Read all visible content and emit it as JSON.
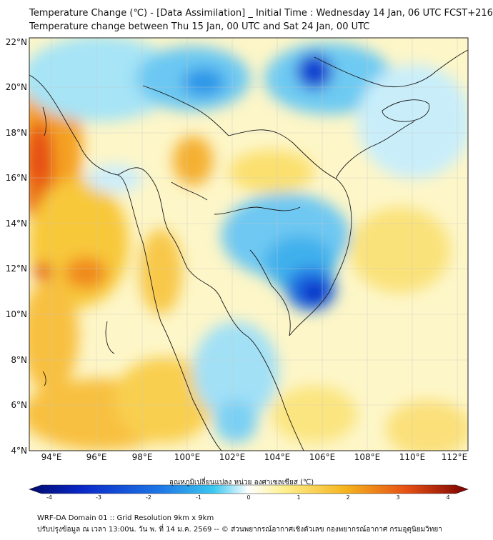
{
  "header": {
    "title_line1": "Temperature Change (℃) - [Data Assimilation] _ Initial Time : Wednesday 14 Jan, 06 UTC FCST+216",
    "title_line2": "Temperature change between Thu 15 Jan, 00 UTC and Sat 24 Jan, 00 UTC"
  },
  "map": {
    "lon_ticks": [
      "94°E",
      "96°E",
      "98°E",
      "100°E",
      "102°E",
      "104°E",
      "106°E",
      "108°E",
      "110°E",
      "112°E"
    ],
    "lat_ticks": [
      "22°N",
      "20°N",
      "18°N",
      "16°N",
      "14°N",
      "12°N",
      "10°N",
      "8°N",
      "6°N",
      "4°N"
    ],
    "lon_values": [
      94,
      96,
      98,
      100,
      102,
      104,
      106,
      108,
      110,
      112
    ],
    "lat_values": [
      22,
      20,
      18,
      16,
      14,
      12,
      10,
      8,
      6,
      4
    ],
    "lon_range": [
      93,
      112.5
    ],
    "lat_range": [
      4,
      22.2
    ]
  },
  "colorbar": {
    "label": "อุณหภูมิเปลี่ยนแปลง หน่วย องศาเซลเซียส (℃)",
    "ticks": [
      "-4",
      "-3",
      "-2",
      "-1",
      "0",
      "1",
      "2",
      "3",
      "4"
    ],
    "tick_values": [
      -4,
      -3,
      -2,
      -1,
      0,
      1,
      2,
      3,
      4
    ],
    "colors": [
      "#000a6e",
      "#0a28c8",
      "#1e78e6",
      "#3cc8f0",
      "#ffffff",
      "#fff090",
      "#f5b41e",
      "#e65014",
      "#7a0000"
    ]
  },
  "footer": {
    "line1": "WRF-DA Domain 01 :: Grid Resolution 9km x 9km",
    "line2": "ปรับปรุงข้อมูล ณ เวลา 13:00น. วัน พ. ที่ 14 ม.ค. 2569 -- © ส่วนพยากรณ์อากาศเชิงตัวเลข กองพยากรณ์อากาศ กรมอุตุนิยมวิทยา"
  }
}
